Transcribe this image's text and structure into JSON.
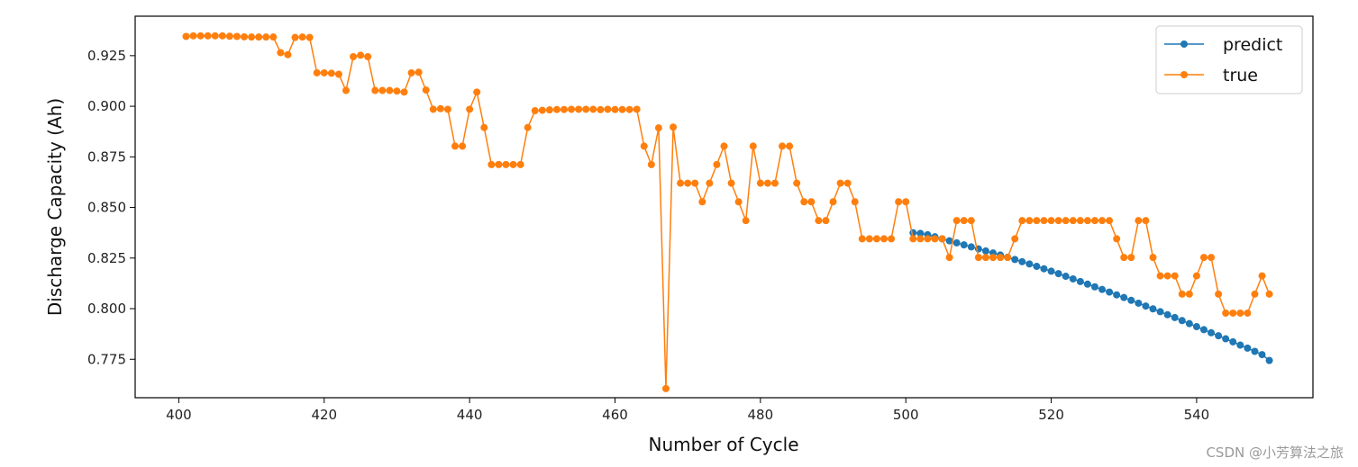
{
  "chart_data": {
    "type": "line",
    "title": "",
    "xlabel": "Number of Cycle",
    "ylabel": "Discharge Capacity (Ah)",
    "xlim": [
      394,
      556
    ],
    "ylim": [
      0.756,
      0.9445
    ],
    "xticks": [
      400,
      420,
      440,
      460,
      480,
      500,
      520,
      540
    ],
    "yticks": [
      0.775,
      0.8,
      0.825,
      0.85,
      0.875,
      0.9,
      0.925
    ],
    "xtick_labels": [
      "400",
      "420",
      "440",
      "460",
      "480",
      "500",
      "520",
      "540"
    ],
    "ytick_labels": [
      "0.775",
      "0.800",
      "0.825",
      "0.850",
      "0.875",
      "0.900",
      "0.925"
    ],
    "grid": false,
    "legend_position": "top-right",
    "legend": [
      "predict",
      "true"
    ],
    "series": [
      {
        "name": "predict",
        "color": "#1f77b4",
        "marker": "circle",
        "x_start": 501,
        "values": [
          0.8375,
          0.8372,
          0.8365,
          0.8355,
          0.8345,
          0.8335,
          0.8325,
          0.8315,
          0.8305,
          0.8295,
          0.8285,
          0.8275,
          0.8265,
          0.8254,
          0.8243,
          0.8232,
          0.8221,
          0.8209,
          0.8197,
          0.8185,
          0.8173,
          0.816,
          0.8147,
          0.8134,
          0.8121,
          0.8108,
          0.8095,
          0.8082,
          0.8068,
          0.8055,
          0.8041,
          0.8027,
          0.8013,
          0.7999,
          0.7985,
          0.797,
          0.7956,
          0.7941,
          0.7926,
          0.7911,
          0.7896,
          0.7881,
          0.7866,
          0.7851,
          0.7836,
          0.782,
          0.7805,
          0.7789,
          0.7773,
          0.7744
        ]
      },
      {
        "name": "true",
        "color": "#ff7f0e",
        "marker": "circle",
        "x_start": 401,
        "values": [
          0.9345,
          0.9348,
          0.9348,
          0.9348,
          0.9348,
          0.9348,
          0.9346,
          0.9345,
          0.9343,
          0.9342,
          0.9342,
          0.9342,
          0.9342,
          0.9265,
          0.9255,
          0.934,
          0.9342,
          0.934,
          0.9165,
          0.9165,
          0.9163,
          0.9158,
          0.9078,
          0.9245,
          0.9252,
          0.9245,
          0.9078,
          0.9078,
          0.9078,
          0.9075,
          0.907,
          0.9165,
          0.9168,
          0.908,
          0.8985,
          0.8988,
          0.8985,
          0.8803,
          0.8803,
          0.8985,
          0.907,
          0.8895,
          0.8712,
          0.8712,
          0.8712,
          0.8712,
          0.8712,
          0.8895,
          0.8978,
          0.898,
          0.8982,
          0.8984,
          0.8984,
          0.8985,
          0.8985,
          0.8985,
          0.8985,
          0.8983,
          0.8985,
          0.8984,
          0.8984,
          0.8984,
          0.8985,
          0.8803,
          0.8712,
          0.8893,
          0.7605,
          0.8897,
          0.862,
          0.862,
          0.862,
          0.8528,
          0.862,
          0.8712,
          0.8803,
          0.862,
          0.8528,
          0.8435,
          0.8803,
          0.862,
          0.862,
          0.862,
          0.8803,
          0.8803,
          0.862,
          0.8528,
          0.8528,
          0.8435,
          0.8435,
          0.8528,
          0.862,
          0.862,
          0.8528,
          0.8345,
          0.8345,
          0.8345,
          0.8345,
          0.8345,
          0.8528,
          0.8528,
          0.8345,
          0.8345,
          0.8345,
          0.8345,
          0.8345,
          0.8253,
          0.8435,
          0.8435,
          0.8435,
          0.8253,
          0.8253,
          0.8253,
          0.8253,
          0.8253,
          0.8345,
          0.8435,
          0.8435,
          0.8435,
          0.8435,
          0.8435,
          0.8435,
          0.8435,
          0.8435,
          0.8435,
          0.8435,
          0.8435,
          0.8435,
          0.8435,
          0.8345,
          0.8253,
          0.8253,
          0.8435,
          0.8435,
          0.8253,
          0.8162,
          0.8162,
          0.8162,
          0.8072,
          0.8072,
          0.8162,
          0.8253,
          0.8253,
          0.8072,
          0.7978,
          0.7978,
          0.7978,
          0.7978,
          0.8072,
          0.8162,
          0.8072
        ]
      }
    ]
  },
  "watermark": "CSDN @小芳算法之旅"
}
